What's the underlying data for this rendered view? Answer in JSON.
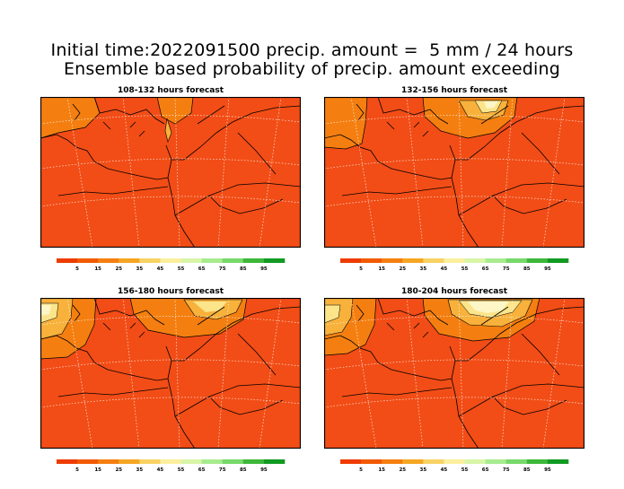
{
  "title_line1": "Initial time:2022091500 precip. amount =  5 mm / 24 hours",
  "title_line2": "Ensemble based probability of precip. amount exceeding",
  "panels": [
    {
      "title": "108-132 hours forecast"
    },
    {
      "title": "132-156 hours forecast"
    },
    {
      "title": "156-180 hours forecast"
    },
    {
      "title": "180-204 hours forecast"
    }
  ],
  "colorbar": {
    "labels": [
      "5",
      "15",
      "25",
      "35",
      "45",
      "55",
      "65",
      "75",
      "85",
      "95"
    ],
    "colors": [
      "#ee3b00",
      "#f25a00",
      "#f47f10",
      "#f5a623",
      "#f8d264",
      "#fbef9e",
      "#d8f5a8",
      "#a7eb8e",
      "#77d96a",
      "#3db83a",
      "#119a22"
    ]
  },
  "colors": {
    "base_field": "#f24d16",
    "band_orange": "#f47f10",
    "band_light": "#f8b13b",
    "band_yellow": "#fbe48a",
    "band_pale": "#fdf6c6"
  }
}
